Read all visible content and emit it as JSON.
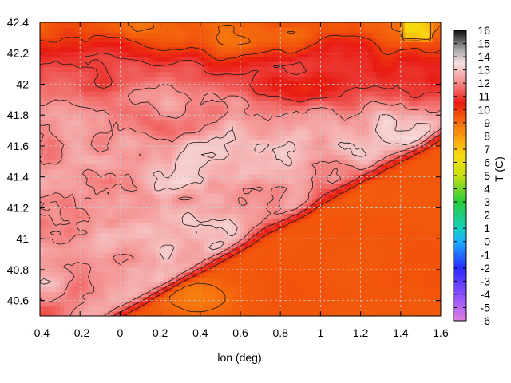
{
  "chart_data": {
    "type": "heatmap",
    "title": "",
    "xlabel": "lon (deg)",
    "ylabel": "",
    "colorbar_label": "T (C)",
    "xlim": [
      -0.4,
      1.6
    ],
    "ylim": [
      40.5,
      42.4
    ],
    "x_ticks": [
      -0.4,
      -0.2,
      0,
      0.2,
      0.4,
      0.6,
      0.8,
      1,
      1.2,
      1.4,
      1.6
    ],
    "x_tick_labels": [
      "-0.4",
      "-0.2",
      "0",
      "0.2",
      "0.4",
      "0.6",
      "0.8",
      "1",
      "1.2",
      "1.4",
      "1.6"
    ],
    "y_ticks": [
      40.6,
      40.8,
      41,
      41.2,
      41.4,
      41.6,
      41.8,
      42,
      42.2,
      42.4
    ],
    "y_tick_labels": [
      "40.6",
      "40.8",
      "41",
      "41.2",
      "41.4",
      "41.6",
      "41.8",
      "42",
      "42.2",
      "42.4"
    ],
    "colorbar_range": [
      -6,
      16
    ],
    "colorbar_ticks": [
      16,
      15,
      14,
      13,
      12,
      11,
      10,
      9,
      8,
      7,
      6,
      5,
      4,
      3,
      2,
      1,
      0,
      -1,
      -2,
      -3,
      -4,
      -5,
      -6
    ],
    "colorbar_tick_labels": [
      "16",
      "15",
      "14",
      "13",
      "12",
      "11",
      "10",
      "9",
      "8",
      "7",
      "6",
      "5",
      "4",
      "3",
      "2",
      "1",
      "0",
      "-1",
      "-2",
      "-3",
      "-4",
      "-5",
      "-6"
    ],
    "colormap": [
      {
        "value": -6,
        "color": "#e07fe0"
      },
      {
        "value": -4,
        "color": "#8a4fff"
      },
      {
        "value": -2,
        "color": "#2a2aff"
      },
      {
        "value": 0,
        "color": "#1ab0ff"
      },
      {
        "value": 1,
        "color": "#15d0c0"
      },
      {
        "value": 3,
        "color": "#27cc3d"
      },
      {
        "value": 5,
        "color": "#c8e012"
      },
      {
        "value": 6.5,
        "color": "#f7dc10"
      },
      {
        "value": 8,
        "color": "#fa9a10"
      },
      {
        "value": 9.5,
        "color": "#f2560c"
      },
      {
        "value": 10.5,
        "color": "#e81a12"
      },
      {
        "value": 12,
        "color": "#f48a8a"
      },
      {
        "value": 13.5,
        "color": "#f7e0e0"
      },
      {
        "value": 14.5,
        "color": "#a8a8a8"
      },
      {
        "value": 16,
        "color": "#101010"
      }
    ],
    "grid": true,
    "contours": true
  }
}
